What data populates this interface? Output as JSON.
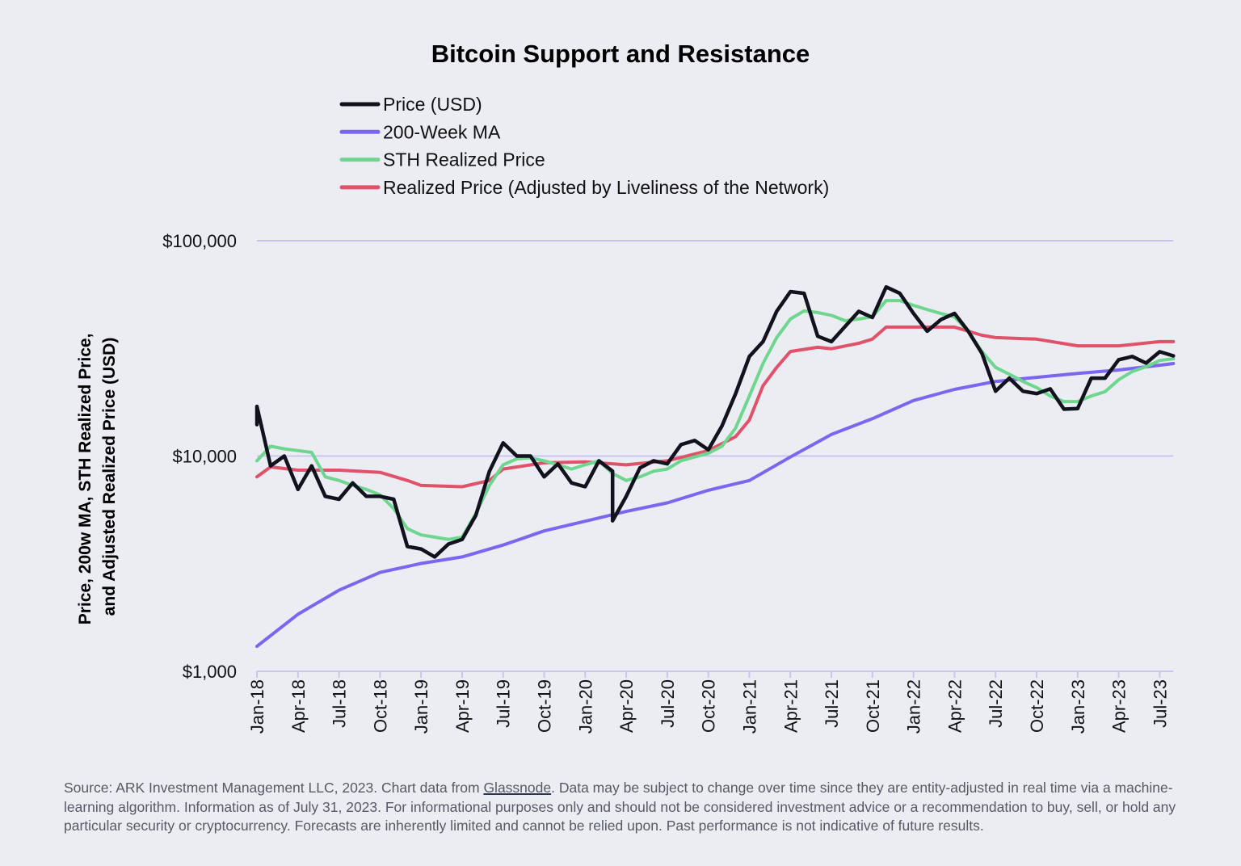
{
  "chart_data": {
    "type": "line",
    "title": "Bitcoin Support and Resistance",
    "ylabel_lines": [
      "Price, 200w MA, STH Realized Price,",
      "and Adjusted Realized Price (USD)"
    ],
    "xlabel": "",
    "yscale": "log",
    "ylim": [
      1000,
      100000
    ],
    "yticks": [
      {
        "value": 1000,
        "label": "$1,000"
      },
      {
        "value": 10000,
        "label": "$10,000"
      },
      {
        "value": 100000,
        "label": "$100,000"
      }
    ],
    "xlim": [
      "2018-01",
      "2023-08"
    ],
    "xticks": [
      {
        "date": "2018-01",
        "label": "Jan-18"
      },
      {
        "date": "2018-04",
        "label": "Apr-18"
      },
      {
        "date": "2018-07",
        "label": "Jul-18"
      },
      {
        "date": "2018-10",
        "label": "Oct-18"
      },
      {
        "date": "2019-01",
        "label": "Jan-19"
      },
      {
        "date": "2019-04",
        "label": "Apr-19"
      },
      {
        "date": "2019-07",
        "label": "Jul-19"
      },
      {
        "date": "2019-10",
        "label": "Oct-19"
      },
      {
        "date": "2020-01",
        "label": "Jan-20"
      },
      {
        "date": "2020-04",
        "label": "Apr-20"
      },
      {
        "date": "2020-07",
        "label": "Jul-20"
      },
      {
        "date": "2020-10",
        "label": "Oct-20"
      },
      {
        "date": "2021-01",
        "label": "Jan-21"
      },
      {
        "date": "2021-04",
        "label": "Apr-21"
      },
      {
        "date": "2021-07",
        "label": "Jul-21"
      },
      {
        "date": "2021-10",
        "label": "Oct-21"
      },
      {
        "date": "2022-01",
        "label": "Jan-22"
      },
      {
        "date": "2022-04",
        "label": "Apr-22"
      },
      {
        "date": "2022-07",
        "label": "Jul-22"
      },
      {
        "date": "2022-10",
        "label": "Oct-22"
      },
      {
        "date": "2023-01",
        "label": "Jan-23"
      },
      {
        "date": "2023-04",
        "label": "Apr-23"
      },
      {
        "date": "2023-07",
        "label": "Jul-23"
      }
    ],
    "grid": "horizontal at major ticks",
    "legend_placement": "top-left",
    "series": [
      {
        "name": "Realized Price (Adjusted by Liveliness of the Network)",
        "color": "#e0526a",
        "points": [
          [
            "2018-01",
            8000
          ],
          [
            "2018-02",
            8900
          ],
          [
            "2018-04",
            8600
          ],
          [
            "2018-07",
            8600
          ],
          [
            "2018-10",
            8400
          ],
          [
            "2018-12",
            7700
          ],
          [
            "2019-01",
            7300
          ],
          [
            "2019-04",
            7200
          ],
          [
            "2019-06",
            7700
          ],
          [
            "2019-07",
            8700
          ],
          [
            "2019-10",
            9300
          ],
          [
            "2020-01",
            9400
          ],
          [
            "2020-04",
            9100
          ],
          [
            "2020-07",
            9500
          ],
          [
            "2020-10",
            10600
          ],
          [
            "2020-12",
            12300
          ],
          [
            "2021-01",
            14700
          ],
          [
            "2021-02",
            21200
          ],
          [
            "2021-03",
            25800
          ],
          [
            "2021-04",
            30600
          ],
          [
            "2021-06",
            32000
          ],
          [
            "2021-07",
            31500
          ],
          [
            "2021-09",
            33400
          ],
          [
            "2021-10",
            34900
          ],
          [
            "2021-11",
            39700
          ],
          [
            "2022-01",
            39700
          ],
          [
            "2022-04",
            39700
          ],
          [
            "2022-06",
            36400
          ],
          [
            "2022-07",
            35500
          ],
          [
            "2022-10",
            34900
          ],
          [
            "2023-01",
            32500
          ],
          [
            "2023-04",
            32500
          ],
          [
            "2023-07",
            34000
          ],
          [
            "2023-08",
            34000
          ]
        ]
      },
      {
        "name": "200-Week MA",
        "color": "#7b66f0",
        "points": [
          [
            "2018-01",
            1306
          ],
          [
            "2018-04",
            1840
          ],
          [
            "2018-07",
            2380
          ],
          [
            "2018-10",
            2880
          ],
          [
            "2019-01",
            3170
          ],
          [
            "2019-04",
            3400
          ],
          [
            "2019-07",
            3860
          ],
          [
            "2019-10",
            4490
          ],
          [
            "2020-01",
            4980
          ],
          [
            "2020-04",
            5530
          ],
          [
            "2020-07",
            6060
          ],
          [
            "2020-10",
            6930
          ],
          [
            "2021-01",
            7700
          ],
          [
            "2021-04",
            9900
          ],
          [
            "2021-07",
            12600
          ],
          [
            "2021-10",
            14900
          ],
          [
            "2022-01",
            18100
          ],
          [
            "2022-04",
            20400
          ],
          [
            "2022-07",
            22200
          ],
          [
            "2022-10",
            23200
          ],
          [
            "2023-01",
            24200
          ],
          [
            "2023-04",
            25100
          ],
          [
            "2023-07",
            26400
          ],
          [
            "2023-08",
            26900
          ]
        ]
      },
      {
        "name": "STH Realized Price",
        "color": "#6fd68f",
        "points": [
          [
            "2018-01",
            9500
          ],
          [
            "2018-02",
            11100
          ],
          [
            "2018-03",
            10800
          ],
          [
            "2018-04",
            10600
          ],
          [
            "2018-05",
            10400
          ],
          [
            "2018-06",
            8000
          ],
          [
            "2018-07",
            7700
          ],
          [
            "2018-08",
            7300
          ],
          [
            "2018-09",
            7000
          ],
          [
            "2018-10",
            6600
          ],
          [
            "2018-11",
            5700
          ],
          [
            "2018-12",
            4600
          ],
          [
            "2019-01",
            4300
          ],
          [
            "2019-02",
            4200
          ],
          [
            "2019-03",
            4100
          ],
          [
            "2019-04",
            4200
          ],
          [
            "2019-05",
            5400
          ],
          [
            "2019-06",
            7300
          ],
          [
            "2019-07",
            9100
          ],
          [
            "2019-08",
            9700
          ],
          [
            "2019-09",
            9800
          ],
          [
            "2019-10",
            9500
          ],
          [
            "2019-11",
            9100
          ],
          [
            "2019-12",
            8700
          ],
          [
            "2020-01",
            9100
          ],
          [
            "2020-02",
            9500
          ],
          [
            "2020-03",
            8300
          ],
          [
            "2020-04",
            7700
          ],
          [
            "2020-05",
            8000
          ],
          [
            "2020-06",
            8500
          ],
          [
            "2020-07",
            8700
          ],
          [
            "2020-08",
            9500
          ],
          [
            "2020-09",
            9900
          ],
          [
            "2020-10",
            10300
          ],
          [
            "2020-11",
            11100
          ],
          [
            "2020-12",
            13500
          ],
          [
            "2021-01",
            19000
          ],
          [
            "2021-02",
            26900
          ],
          [
            "2021-03",
            35500
          ],
          [
            "2021-04",
            43300
          ],
          [
            "2021-05",
            47200
          ],
          [
            "2021-06",
            46400
          ],
          [
            "2021-07",
            45000
          ],
          [
            "2021-08",
            42500
          ],
          [
            "2021-09",
            43300
          ],
          [
            "2021-10",
            44300
          ],
          [
            "2021-11",
            52700
          ],
          [
            "2021-12",
            52700
          ],
          [
            "2022-01",
            50100
          ],
          [
            "2022-02",
            47900
          ],
          [
            "2022-03",
            45900
          ],
          [
            "2022-04",
            44300
          ],
          [
            "2022-05",
            38000
          ],
          [
            "2022-06",
            30600
          ],
          [
            "2022-07",
            25800
          ],
          [
            "2022-08",
            24000
          ],
          [
            "2022-09",
            22200
          ],
          [
            "2022-10",
            20800
          ],
          [
            "2022-11",
            19000
          ],
          [
            "2022-12",
            17900
          ],
          [
            "2023-01",
            17900
          ],
          [
            "2023-02",
            19000
          ],
          [
            "2023-03",
            19900
          ],
          [
            "2023-04",
            22600
          ],
          [
            "2023-05",
            24700
          ],
          [
            "2023-06",
            26000
          ],
          [
            "2023-07",
            27800
          ],
          [
            "2023-08",
            28300
          ]
        ]
      },
      {
        "name": "Price (USD)",
        "color": "#12121e",
        "points": [
          [
            "2018-01",
            14000
          ],
          [
            "2018-01",
            17000
          ],
          [
            "2018-02",
            9000
          ],
          [
            "2018-03",
            10000
          ],
          [
            "2018-04",
            7000
          ],
          [
            "2018-05",
            9000
          ],
          [
            "2018-06",
            6500
          ],
          [
            "2018-07",
            6300
          ],
          [
            "2018-08",
            7500
          ],
          [
            "2018-09",
            6500
          ],
          [
            "2018-10",
            6500
          ],
          [
            "2018-11",
            6300
          ],
          [
            "2018-12",
            3800
          ],
          [
            "2019-01",
            3700
          ],
          [
            "2019-02",
            3400
          ],
          [
            "2019-03",
            3900
          ],
          [
            "2019-04",
            4100
          ],
          [
            "2019-05",
            5300
          ],
          [
            "2019-06",
            8500
          ],
          [
            "2019-07",
            11500
          ],
          [
            "2019-08",
            10000
          ],
          [
            "2019-09",
            10000
          ],
          [
            "2019-10",
            8000
          ],
          [
            "2019-11",
            9200
          ],
          [
            "2019-12",
            7500
          ],
          [
            "2020-01",
            7200
          ],
          [
            "2020-02",
            9500
          ],
          [
            "2020-03",
            8500
          ],
          [
            "2020-03",
            5000
          ],
          [
            "2020-04",
            6500
          ],
          [
            "2020-05",
            8800
          ],
          [
            "2020-06",
            9500
          ],
          [
            "2020-07",
            9200
          ],
          [
            "2020-08",
            11300
          ],
          [
            "2020-09",
            11800
          ],
          [
            "2020-10",
            10700
          ],
          [
            "2020-11",
            13800
          ],
          [
            "2020-12",
            19500
          ],
          [
            "2021-01",
            29000
          ],
          [
            "2021-02",
            34000
          ],
          [
            "2021-03",
            47000
          ],
          [
            "2021-04",
            58000
          ],
          [
            "2021-05",
            57000
          ],
          [
            "2021-06",
            36000
          ],
          [
            "2021-07",
            34000
          ],
          [
            "2021-08",
            40000
          ],
          [
            "2021-09",
            47000
          ],
          [
            "2021-10",
            44000
          ],
          [
            "2021-11",
            61000
          ],
          [
            "2021-12",
            57000
          ],
          [
            "2022-01",
            46000
          ],
          [
            "2022-02",
            38000
          ],
          [
            "2022-03",
            43000
          ],
          [
            "2022-04",
            46000
          ],
          [
            "2022-05",
            38000
          ],
          [
            "2022-06",
            30000
          ],
          [
            "2022-07",
            20000
          ],
          [
            "2022-08",
            23000
          ],
          [
            "2022-09",
            20000
          ],
          [
            "2022-10",
            19500
          ],
          [
            "2022-11",
            20500
          ],
          [
            "2022-12",
            16500
          ],
          [
            "2023-01",
            16600
          ],
          [
            "2023-02",
            23000
          ],
          [
            "2023-03",
            23000
          ],
          [
            "2023-04",
            28000
          ],
          [
            "2023-05",
            29000
          ],
          [
            "2023-06",
            27000
          ],
          [
            "2023-07",
            30500
          ],
          [
            "2023-08",
            29200
          ]
        ]
      }
    ],
    "legend": [
      {
        "label": "Price (USD)",
        "color": "#12121e"
      },
      {
        "label": "200-Week MA",
        "color": "#7b66f0"
      },
      {
        "label": "STH Realized Price",
        "color": "#6fd68f"
      },
      {
        "label": "Realized Price (Adjusted by Liveliness of the Network)",
        "color": "#e0526a"
      }
    ],
    "gridline_color": "#c9c6ee"
  },
  "footer": {
    "before": "Source: ARK Investment Management LLC, 2023. Chart data from ",
    "link": "Glassnode",
    "after": ". Data may be subject to change over time since they are entity-adjusted in real time via a machine-learning algorithm. Information as of July 31, 2023. For informational purposes only and should not be considered investment advice or a recommendation to buy, sell, or hold any particular security or cryptocurrency. Forecasts are inherently limited and cannot be relied upon. Past performance is not indicative of future results."
  }
}
